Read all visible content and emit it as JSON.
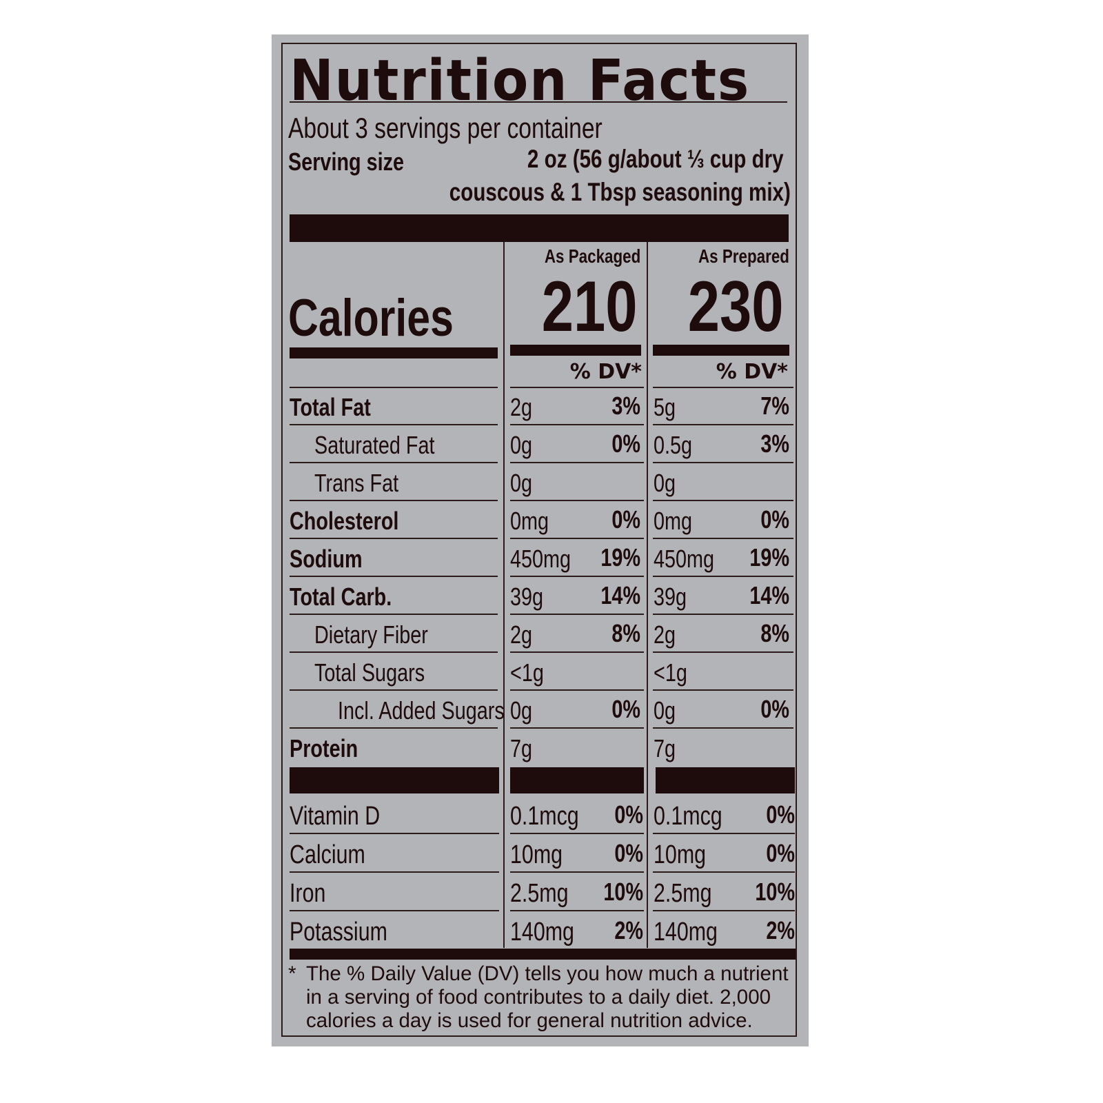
{
  "title": "Nutrition Facts",
  "servings_per_container": "About 3 servings per container",
  "serving_size": {
    "label": "Serving size",
    "value_line1": "2 oz (56 g/about ⅓ cup dry",
    "value_line2": "couscous & 1 Tbsp seasoning mix)"
  },
  "columns": [
    {
      "header": "As Packaged",
      "calories": "210",
      "dv_header": "% DV*"
    },
    {
      "header": "As Prepared",
      "calories": "230",
      "dv_header": "% DV*"
    }
  ],
  "calories_label": "Calories",
  "nutrients": [
    {
      "name": "Total Fat",
      "bold": true,
      "indent": 0,
      "packaged": "2g",
      "packaged_dv": "3%",
      "prepared": "5g",
      "prepared_dv": "7%"
    },
    {
      "name": "Saturated Fat",
      "bold": false,
      "indent": 1,
      "packaged": "0g",
      "packaged_dv": "0%",
      "prepared": "0.5g",
      "prepared_dv": "3%"
    },
    {
      "name": "Trans Fat",
      "bold": false,
      "indent": 1,
      "packaged": "0g",
      "packaged_dv": "",
      "prepared": "0g",
      "prepared_dv": ""
    },
    {
      "name": "Cholesterol",
      "bold": true,
      "indent": 0,
      "packaged": "0mg",
      "packaged_dv": "0%",
      "prepared": "0mg",
      "prepared_dv": "0%"
    },
    {
      "name": "Sodium",
      "bold": true,
      "indent": 0,
      "packaged": "450mg",
      "packaged_dv": "19%",
      "prepared": "450mg",
      "prepared_dv": "19%"
    },
    {
      "name": "Total Carb.",
      "bold": true,
      "indent": 0,
      "packaged": "39g",
      "packaged_dv": "14%",
      "prepared": "39g",
      "prepared_dv": "14%"
    },
    {
      "name": "Dietary Fiber",
      "bold": false,
      "indent": 1,
      "packaged": "2g",
      "packaged_dv": "8%",
      "prepared": "2g",
      "prepared_dv": "8%"
    },
    {
      "name": "Total Sugars",
      "bold": false,
      "indent": 1,
      "packaged": "<1g",
      "packaged_dv": "",
      "prepared": "<1g",
      "prepared_dv": ""
    },
    {
      "name": "Incl. Added Sugars",
      "bold": false,
      "indent": 2,
      "packaged": "0g",
      "packaged_dv": "0%",
      "prepared": "0g",
      "prepared_dv": "0%"
    },
    {
      "name": "Protein",
      "bold": true,
      "indent": 0,
      "packaged": "7g",
      "packaged_dv": "",
      "prepared": "7g",
      "prepared_dv": ""
    }
  ],
  "vitamins": [
    {
      "name": "Vitamin D",
      "packaged": "0.1mcg",
      "packaged_dv": "0%",
      "prepared": "0.1mcg",
      "prepared_dv": "0%"
    },
    {
      "name": "Calcium",
      "packaged": "10mg",
      "packaged_dv": "0%",
      "prepared": "10mg",
      "prepared_dv": "0%"
    },
    {
      "name": "Iron",
      "packaged": "2.5mg",
      "packaged_dv": "10%",
      "prepared": "2.5mg",
      "prepared_dv": "10%"
    },
    {
      "name": "Potassium",
      "packaged": "140mg",
      "packaged_dv": "2%",
      "prepared": "140mg",
      "prepared_dv": "2%"
    }
  ],
  "footnote": {
    "marker": "*",
    "lines": [
      "The % Daily Value (DV) tells you how much a nutrient",
      "in a serving of food contributes to a daily diet. 2,000",
      "calories a day is used for general nutrition advice."
    ]
  },
  "colors": {
    "background": "#b3b4b8",
    "ink": "#1e0b0c"
  }
}
